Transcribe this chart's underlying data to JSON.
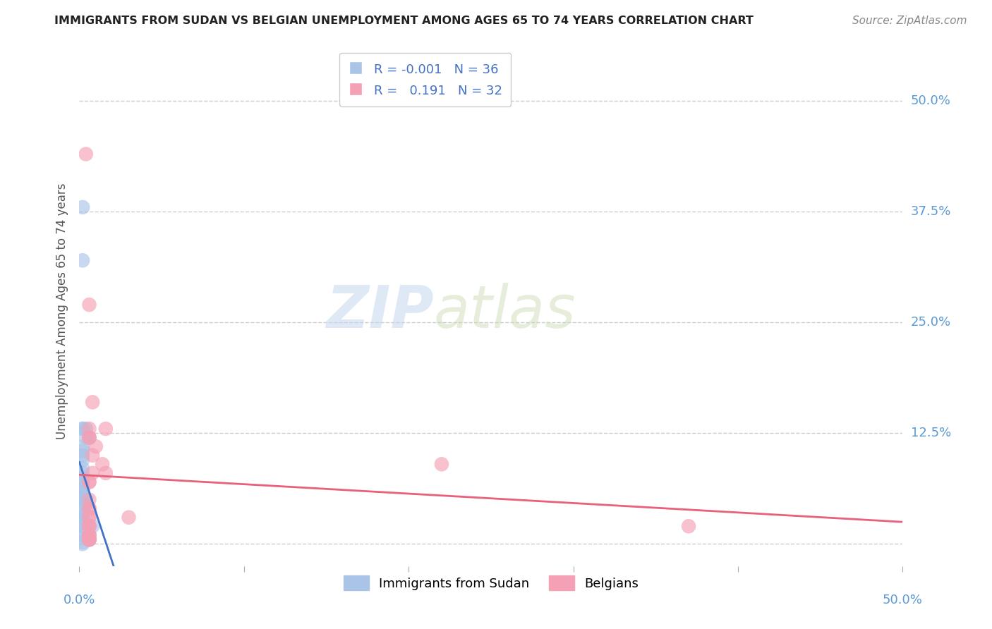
{
  "title": "IMMIGRANTS FROM SUDAN VS BELGIAN UNEMPLOYMENT AMONG AGES 65 TO 74 YEARS CORRELATION CHART",
  "source": "Source: ZipAtlas.com",
  "ylabel": "Unemployment Among Ages 65 to 74 years",
  "legend_label1": "Immigrants from Sudan",
  "legend_label2": "Belgians",
  "r1": "-0.001",
  "n1": "36",
  "r2": "0.191",
  "n2": "32",
  "watermark_zip": "ZIP",
  "watermark_atlas": "atlas",
  "sudan_x": [
    0.2,
    0.2,
    0.4,
    0.2,
    0.2,
    0.6,
    0.4,
    0.2,
    0.2,
    0.2,
    0.2,
    0.2,
    0.2,
    0.2,
    0.2,
    0.2,
    0.2,
    0.2,
    0.2,
    0.2,
    0.2,
    0.2,
    0.4,
    0.4,
    0.2,
    0.2,
    0.2,
    0.2,
    0.2,
    0.8,
    0.2,
    0.2,
    0.2,
    0.6,
    0.2,
    0.2
  ],
  "sudan_y": [
    38.0,
    32.0,
    13.0,
    13.0,
    13.0,
    12.0,
    12.0,
    11.0,
    10.5,
    10.0,
    9.5,
    8.5,
    8.0,
    7.5,
    7.2,
    7.0,
    6.5,
    6.2,
    6.0,
    5.5,
    5.2,
    5.0,
    5.0,
    4.5,
    4.0,
    3.5,
    3.2,
    3.0,
    2.5,
    2.0,
    2.0,
    1.5,
    1.0,
    0.5,
    0.2,
    0.0
  ],
  "belgian_x": [
    0.4,
    0.6,
    1.6,
    0.6,
    0.6,
    1.0,
    0.8,
    1.4,
    1.6,
    0.8,
    0.8,
    0.6,
    0.6,
    0.6,
    0.6,
    0.6,
    3.0,
    0.6,
    22.0,
    0.6,
    0.6,
    0.6,
    0.6,
    0.6,
    0.6,
    0.6,
    0.6,
    0.6,
    0.6,
    0.6,
    37.0,
    0.6
  ],
  "belgian_y": [
    44.0,
    27.0,
    13.0,
    12.0,
    12.0,
    11.0,
    10.0,
    9.0,
    8.0,
    16.0,
    8.0,
    7.0,
    7.0,
    5.0,
    4.0,
    4.0,
    3.0,
    3.0,
    9.0,
    3.0,
    2.0,
    2.0,
    2.0,
    1.0,
    1.0,
    1.0,
    0.5,
    0.5,
    0.5,
    0.5,
    2.0,
    13.0
  ],
  "sudan_color": "#aac4e8",
  "belgian_color": "#f4a0b5",
  "sudan_line_color": "#4472c4",
  "belgian_line_color": "#e8607a",
  "grid_color": "#cccccc",
  "right_label_color": "#5b9bd5",
  "title_color": "#222222",
  "source_color": "#888888",
  "xmin": 0.0,
  "xmax": 50.0,
  "ymin": -2.5,
  "ymax": 55.0,
  "yticks": [
    0.0,
    12.5,
    25.0,
    37.5,
    50.0
  ],
  "ytick_labels": [
    "",
    "12.5%",
    "25.0%",
    "37.5%",
    "50.0%"
  ],
  "xticks": [
    0.0,
    10.0,
    20.0,
    30.0,
    40.0,
    50.0
  ]
}
